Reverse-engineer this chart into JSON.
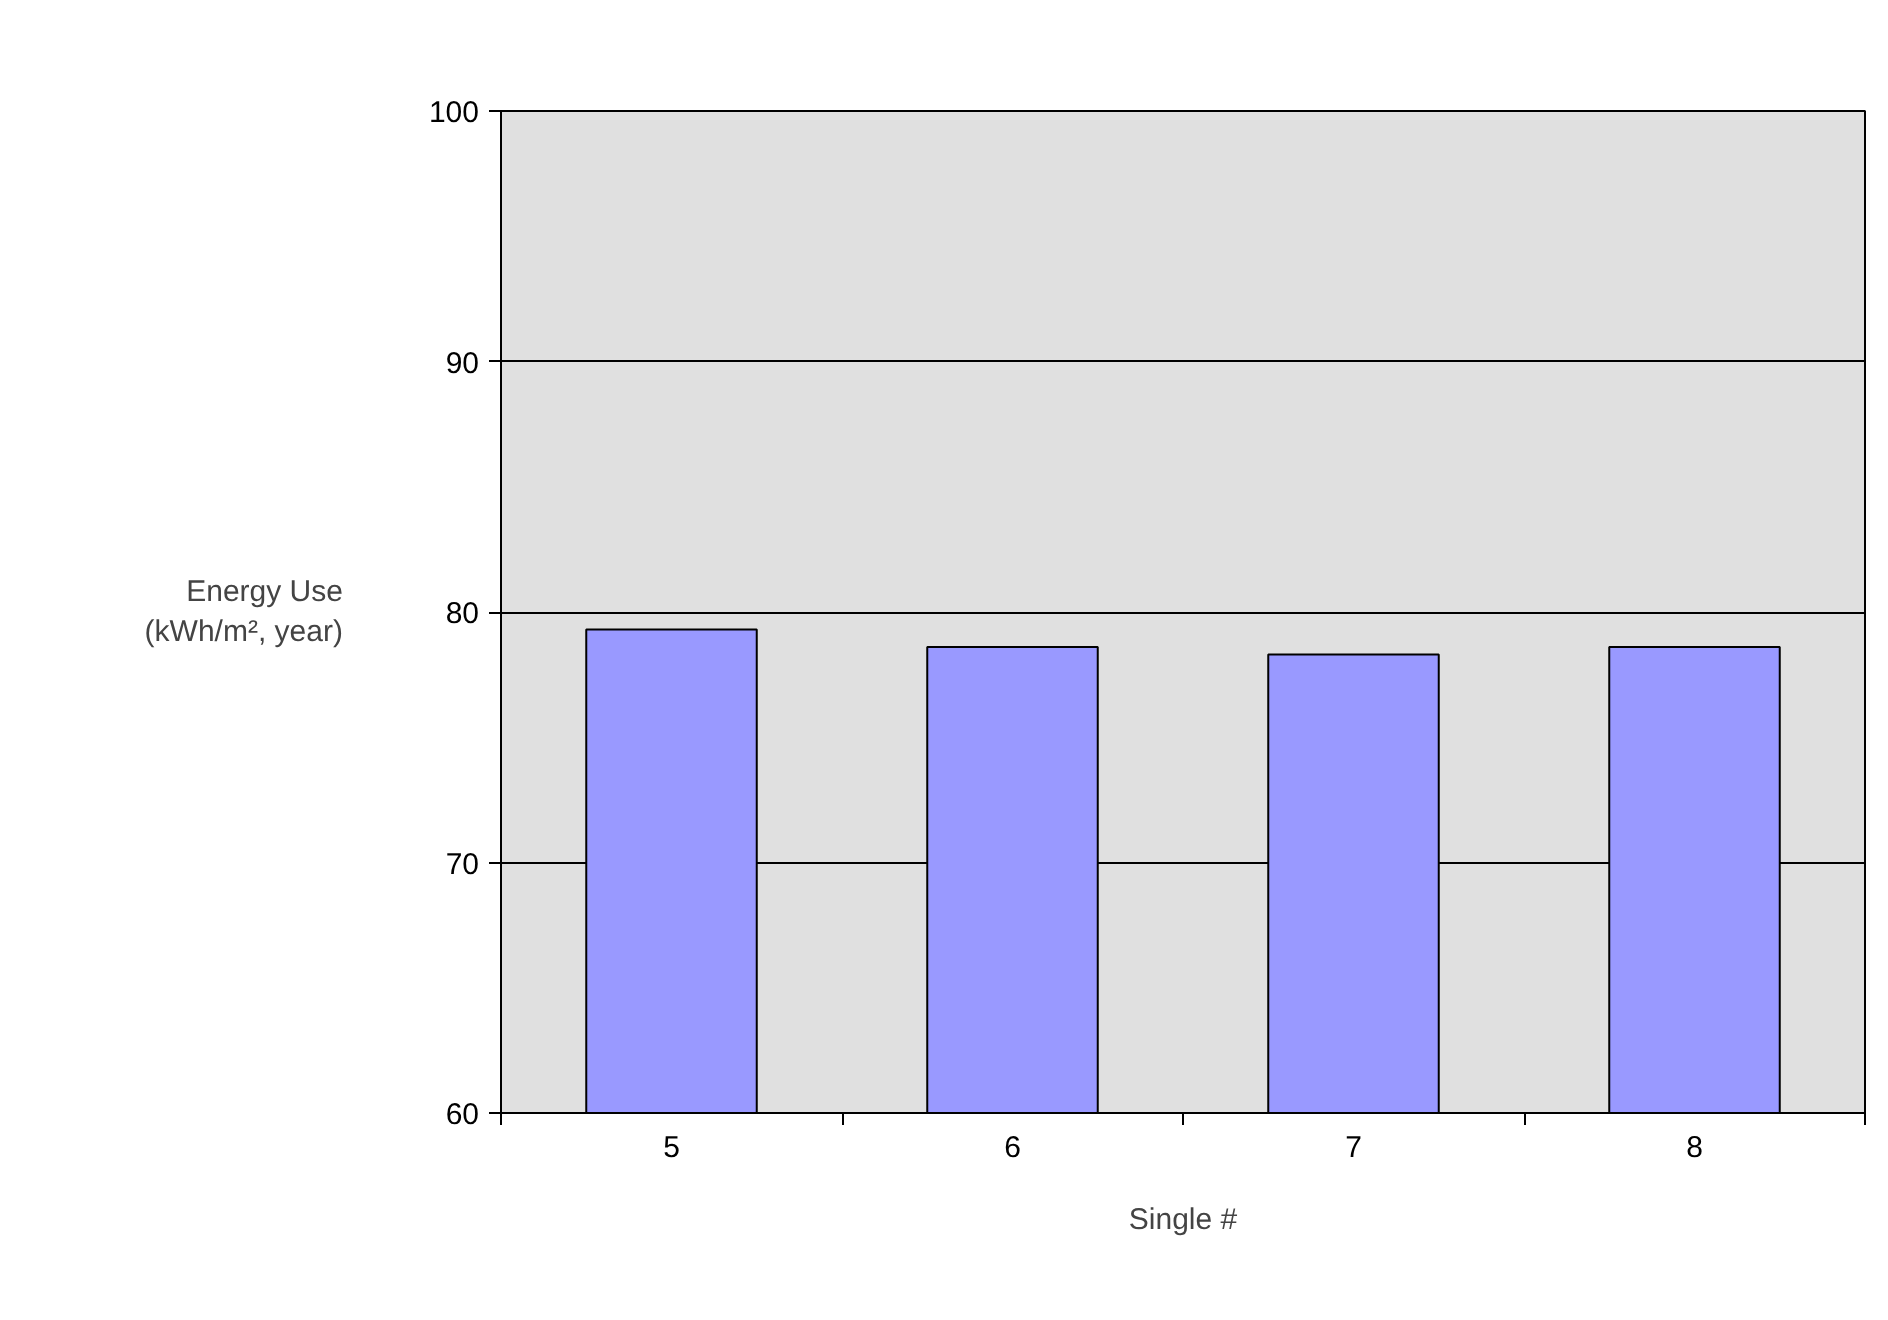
{
  "chart_data": {
    "type": "bar",
    "ylabel": "Energy Use\n(kWh/m², year)",
    "xlabel": "Single #",
    "categories": [
      "5",
      "6",
      "7",
      "8"
    ],
    "values": [
      79.3,
      78.6,
      78.3,
      78.6
    ],
    "color": "#9999ff",
    "ylim": [
      60,
      100
    ],
    "yticks": [
      60,
      70,
      80,
      90,
      100
    ],
    "grid": "y"
  }
}
